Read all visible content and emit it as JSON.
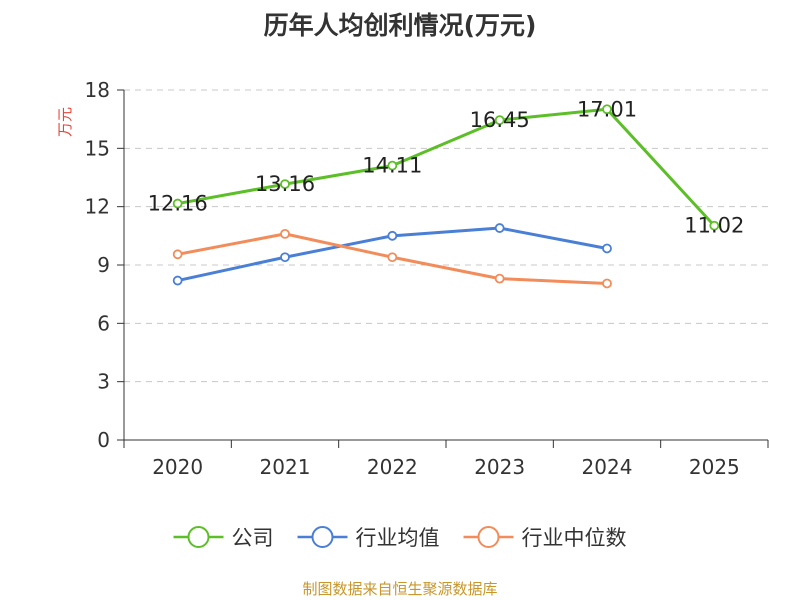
{
  "chart_data": {
    "type": "line",
    "title": "历年人均创利情况(万元)",
    "ylabel": "万元",
    "xlabel": "",
    "categories": [
      "2020",
      "2021",
      "2022",
      "2023",
      "2024",
      "2025"
    ],
    "ylim": [
      0,
      18
    ],
    "yticks": [
      0,
      3,
      6,
      9,
      12,
      15,
      18
    ],
    "grid": true,
    "legend_position": "bottom",
    "series": [
      {
        "name": "公司",
        "color": "#5cbf28",
        "values": [
          12.16,
          13.16,
          14.11,
          16.45,
          17.01,
          11.02
        ],
        "labels": [
          "12.16",
          "13.16",
          "14.11",
          "16.45",
          "17.01",
          "11.02"
        ]
      },
      {
        "name": "行业均值",
        "color": "#4a7fd6",
        "values": [
          8.2,
          9.4,
          10.5,
          10.9,
          9.85,
          null
        ]
      },
      {
        "name": "行业中位数",
        "color": "#f28c5a",
        "values": [
          9.55,
          10.6,
          9.4,
          8.3,
          8.05,
          null
        ]
      }
    ]
  },
  "source": "制图数据来自恒生聚源数据库",
  "colors": {
    "axis": "#333333",
    "grid": "#c8c8c8",
    "ylabel": "#e8443a",
    "source": "#c8962b"
  }
}
